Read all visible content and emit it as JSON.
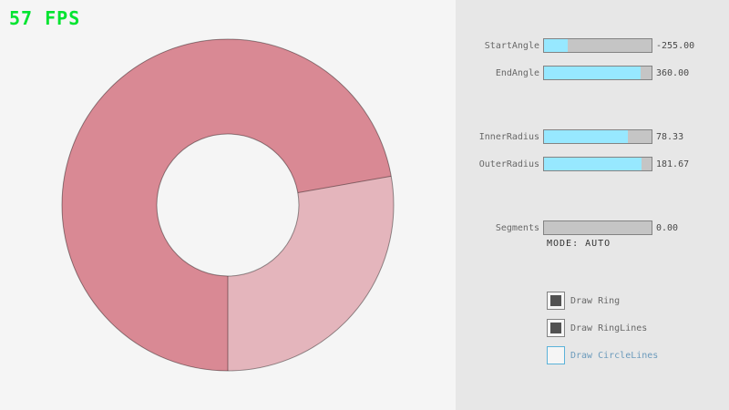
{
  "fps": {
    "text": "57 FPS"
  },
  "ring": {
    "start_angle": "-255.00",
    "end_angle": "360.00",
    "inner_radius": "78.33",
    "outer_radius": "181.67",
    "segments": "0.00"
  },
  "panel": {
    "sliders": [
      {
        "id": "start-angle",
        "label": "StartAngle",
        "value": "-255.00",
        "fill_pct": 21.7
      },
      {
        "id": "end-angle",
        "label": "EndAngle",
        "value": "360.00",
        "fill_pct": 90
      },
      {
        "id": "inner-radius",
        "label": "InnerRadius",
        "value": "78.33",
        "fill_pct": 78.3
      },
      {
        "id": "outer-radius",
        "label": "OuterRadius",
        "value": "181.67",
        "fill_pct": 90.8
      },
      {
        "id": "segments",
        "label": "Segments",
        "value": "0.00",
        "fill_pct": 0
      }
    ],
    "mode_text": "MODE: AUTO",
    "checkboxes": [
      {
        "id": "draw-ring",
        "label": "Draw Ring",
        "checked": true
      },
      {
        "id": "draw-ringlines",
        "label": "Draw RingLines",
        "checked": true
      },
      {
        "id": "draw-circlelines",
        "label": "Draw CircleLines",
        "checked": false
      }
    ]
  },
  "colors": {
    "canvas-bg": "#f5f5f5",
    "panel-bg": "#e7e7e7",
    "fps-green": "#00e430",
    "ring-light": "#e4b5bc",
    "ring-dark": "#d98994",
    "ring-line": "#00000066",
    "slider-accent": "#97e8ff",
    "slider-bg": "#c5c5c5",
    "slider-border": "#838383",
    "label-gray": "#686868",
    "value-gray": "#4a4a4a",
    "mode-color": "#333333",
    "check-dark": "#525252",
    "focus-blue": "#5bb2d9",
    "focus-text": "#6c9bbc"
  }
}
